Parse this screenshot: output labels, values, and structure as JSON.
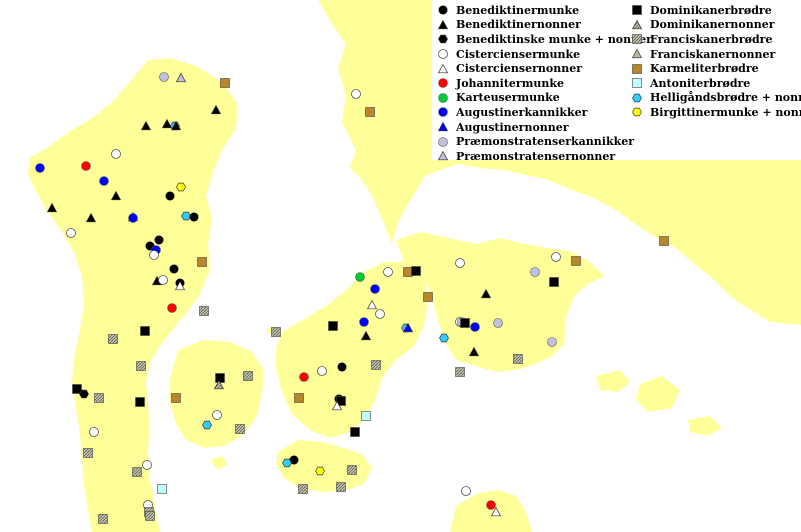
{
  "legend": {
    "left": [
      {
        "label": "Benediktinermunke",
        "icon": "filled-circle-black"
      },
      {
        "label": "Benediktinernonner",
        "icon": "filled-triangle-black"
      },
      {
        "label": "Benediktinske munke + nonner",
        "icon": "filled-hexagon-black"
      },
      {
        "label": "Cisterciensermunke",
        "icon": "open-circle"
      },
      {
        "label": "Cisterciensernonner",
        "icon": "open-triangle"
      },
      {
        "label": "Johannitermunke",
        "icon": "circle-red"
      },
      {
        "label": "Karteusermunke",
        "icon": "circle-green"
      },
      {
        "label": "Augustinerkannikker",
        "icon": "circle-blue"
      },
      {
        "label": "Augustinernonner",
        "icon": "triangle-blue"
      },
      {
        "label": "Præmonstratenserkannikker",
        "icon": "circle-lavender"
      },
      {
        "label": "Præmonstratensernonner",
        "icon": "triangle-lavender"
      }
    ],
    "right": [
      {
        "label": "Dominikanerbrødre",
        "icon": "square-black"
      },
      {
        "label": "Dominikanernonner",
        "icon": "triangle-hatched"
      },
      {
        "label": "Franciskanerbrødre",
        "icon": "square-grey"
      },
      {
        "label": "Franciskanernonner",
        "icon": "triangle-grey"
      },
      {
        "label": "Karmeliterbrødre",
        "icon": "square-brown"
      },
      {
        "label": "Antoniterbrødre",
        "icon": "square-lightcyan"
      },
      {
        "label": "Helligåndsbrødre + nonner",
        "icon": "hexagon-cyan"
      },
      {
        "label": "Birgittinermunke + nonner",
        "icon": "hexagon-yellow"
      }
    ]
  },
  "colors": {
    "land": "#ffff99",
    "sea": "#ffffff",
    "black": "#000000",
    "red": "#ff0000",
    "green": "#00cc33",
    "blue": "#0000ff",
    "lavender": "#c0c0e0",
    "grey": "#b8b8a0",
    "brown": "#b8862c",
    "lightcyan": "#c0ffff",
    "cyan": "#33ccff",
    "yellow": "#ffff00"
  }
}
